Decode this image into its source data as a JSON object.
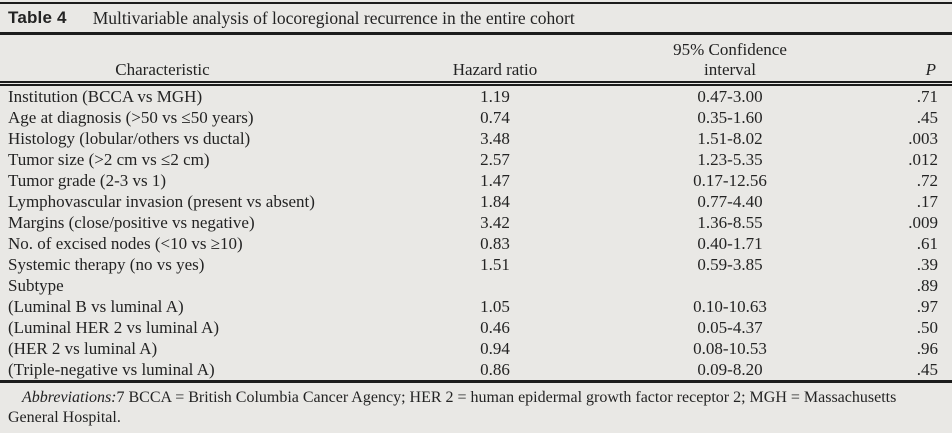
{
  "table": {
    "label": "Table 4",
    "title": "Multivariable analysis of locoregional recurrence in the entire cohort",
    "headers": {
      "characteristic": "Characteristic",
      "hazard_ratio": "Hazard ratio",
      "ci_line1": "95% Confidence",
      "ci_line2": "interval",
      "p": "P"
    },
    "rows": [
      {
        "characteristic": "Institution (BCCA vs MGH)",
        "hazard_ratio": "1.19",
        "ci": "0.47-3.00",
        "p": ".71"
      },
      {
        "characteristic": "Age at diagnosis (>50 vs ≤50 years)",
        "hazard_ratio": "0.74",
        "ci": "0.35-1.60",
        "p": ".45"
      },
      {
        "characteristic": "Histology (lobular/others vs ductal)",
        "hazard_ratio": "3.48",
        "ci": "1.51-8.02",
        "p": ".003"
      },
      {
        "characteristic": "Tumor size (>2 cm vs ≤2 cm)",
        "hazard_ratio": "2.57",
        "ci": "1.23-5.35",
        "p": ".012"
      },
      {
        "characteristic": "Tumor grade (2-3 vs 1)",
        "hazard_ratio": "1.47",
        "ci": "0.17-12.56",
        "p": ".72"
      },
      {
        "characteristic": "Lymphovascular invasion (present vs absent)",
        "hazard_ratio": "1.84",
        "ci": "0.77-4.40",
        "p": ".17"
      },
      {
        "characteristic": "Margins (close/positive vs negative)",
        "hazard_ratio": "3.42",
        "ci": "1.36-8.55",
        "p": ".009"
      },
      {
        "characteristic": "No. of excised nodes (<10 vs ≥10)",
        "hazard_ratio": "0.83",
        "ci": "0.40-1.71",
        "p": ".61"
      },
      {
        "characteristic": "Systemic therapy (no vs yes)",
        "hazard_ratio": "1.51",
        "ci": "0.59-3.85",
        "p": ".39"
      },
      {
        "characteristic": "Subtype",
        "hazard_ratio": "",
        "ci": "",
        "p": ".89"
      },
      {
        "characteristic": "(Luminal B vs luminal A)",
        "hazard_ratio": "1.05",
        "ci": "0.10-10.63",
        "p": ".97"
      },
      {
        "characteristic": "(Luminal HER 2 vs luminal A)",
        "hazard_ratio": "0.46",
        "ci": "0.05-4.37",
        "p": ".50"
      },
      {
        "characteristic": "(HER 2 vs luminal A)",
        "hazard_ratio": "0.94",
        "ci": "0.08-10.53",
        "p": ".96"
      },
      {
        "characteristic": "(Triple-negative vs luminal A)",
        "hazard_ratio": "0.86",
        "ci": "0.09-8.20",
        "p": ".45"
      }
    ],
    "footnote_label": "Abbreviations:",
    "footnote_text": "7 BCCA = British Columbia Cancer Agency; HER 2 = human epidermal growth factor receptor 2; MGH = Massachusetts General Hospital."
  },
  "colors": {
    "background": "#e9e8e5",
    "text": "#232323",
    "rule": "#1c1c1c"
  }
}
